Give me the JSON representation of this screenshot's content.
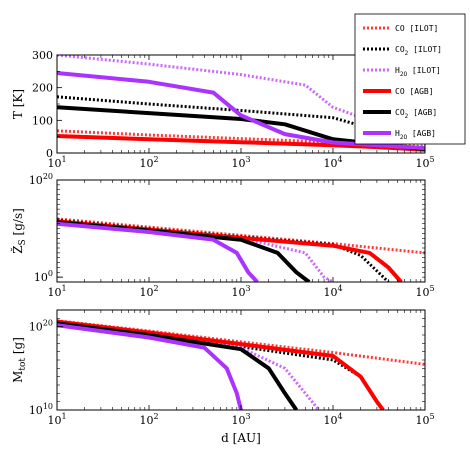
{
  "chart_data": [
    {
      "type": "line",
      "ylabel": "T [K]",
      "xlabel": "",
      "xscale": "log",
      "xlim": [
        10,
        100000
      ],
      "yscale": "linear",
      "ylim": [
        0,
        300
      ],
      "yticks": [
        0,
        100,
        200,
        300
      ],
      "ytick_labels": [
        "0",
        "100",
        "200",
        "300"
      ],
      "xtick_labels": [
        "10^1",
        "10^2",
        "10^3",
        "10^4",
        "10^5"
      ],
      "series": [
        {
          "name": "CO [ILOT]",
          "color": "#ff3b3b",
          "style": "dotted",
          "x": [
            10,
            100,
            1000,
            10000,
            100000
          ],
          "y": [
            68,
            55,
            44,
            33,
            20
          ]
        },
        {
          "name": "CO_2 [ILOT]",
          "color": "#000000",
          "style": "dotted",
          "x": [
            10,
            100,
            1000,
            10000,
            100000
          ],
          "y": [
            172,
            150,
            130,
            108,
            28
          ]
        },
        {
          "name": "H_2O [ILOT]",
          "color": "#cc66ff",
          "style": "dotted",
          "x": [
            10,
            100,
            1000,
            5000,
            10000,
            100000
          ],
          "y": [
            300,
            272,
            240,
            208,
            140,
            38
          ]
        },
        {
          "name": "CO [AGB]",
          "color": "#ff0000",
          "style": "solid",
          "x": [
            10,
            100,
            1000,
            10000,
            30000,
            100000
          ],
          "y": [
            52,
            42,
            33,
            24,
            18,
            10
          ]
        },
        {
          "name": "CO_2 [AGB]",
          "color": "#000000",
          "style": "solid",
          "x": [
            10,
            100,
            1000,
            3000,
            10000,
            100000
          ],
          "y": [
            140,
            122,
            104,
            88,
            42,
            12
          ]
        },
        {
          "name": "H_2O [AGB]",
          "color": "#aa33ff",
          "style": "solid",
          "x": [
            10,
            100,
            500,
            1000,
            3000,
            10000,
            100000
          ],
          "y": [
            245,
            218,
            185,
            115,
            58,
            32,
            15
          ]
        }
      ]
    },
    {
      "type": "line",
      "ylabel": "Ž_S [g/s]",
      "xlabel": "",
      "xscale": "log",
      "xlim": [
        10,
        100000
      ],
      "yscale": "log",
      "ylim": [
        0.1,
        100000000000000000000
      ],
      "ytick_labels": [
        "10^0",
        "10^20"
      ],
      "xtick_labels": [
        "10^1",
        "10^2",
        "10^3",
        "10^4",
        "10^5"
      ],
      "series": [
        {
          "name": "CO [ILOT]",
          "x": [
            10,
            100,
            1000,
            10000,
            100000
          ],
          "y": [
            1000000000000.0,
            20000000000.0,
            400000000.0,
            8000000.0,
            100000.0
          ]
        },
        {
          "name": "CO_2 [ILOT]",
          "x": [
            10,
            100,
            1000,
            10000,
            20000,
            40000
          ],
          "y": [
            500000000000.0,
            10000000000.0,
            200000000.0,
            5000000.0,
            30000.0,
            0.1
          ]
        },
        {
          "name": "H_2O [ILOT]",
          "x": [
            10,
            100,
            1000,
            5000,
            8000,
            10000
          ],
          "y": [
            300000000000.0,
            6000000000.0,
            120000000.0,
            100000.0,
            1,
            0.1
          ]
        },
        {
          "name": "CO [AGB]",
          "x": [
            10,
            100,
            1000,
            10000,
            25000,
            40000,
            55000
          ],
          "y": [
            300000000000.0,
            6000000000.0,
            120000000.0,
            3000000.0,
            100000.0,
            100.0,
            0.1
          ]
        },
        {
          "name": "CO_2 [AGB]",
          "x": [
            10,
            100,
            1000,
            2500,
            4000,
            5500
          ],
          "y": [
            200000000000.0,
            4000000000.0,
            50000000.0,
            100000.0,
            10,
            0.1
          ]
        },
        {
          "name": "H_2O [AGB]",
          "x": [
            10,
            100,
            500,
            900,
            1200,
            1500
          ],
          "y": [
            100000000000.0,
            2000000000.0,
            50000000.0,
            100000.0,
            10,
            0.1
          ]
        }
      ]
    },
    {
      "type": "line",
      "ylabel": "M_tot [g]",
      "xlabel": "d [AU]",
      "xscale": "log",
      "xlim": [
        10,
        100000
      ],
      "yscale": "log",
      "ylim": [
        10000000000,
        10000000000000000000000
      ],
      "ytick_labels": [
        "10^10",
        "10^20"
      ],
      "xtick_labels": [
        "10^1",
        "10^2",
        "10^3",
        "10^4",
        "10^5"
      ],
      "series": [
        {
          "name": "CO [ILOT]",
          "x": [
            10,
            100,
            1000,
            10000,
            100000
          ],
          "y": [
            5e+20,
            3e+19,
            1.5e+18,
            8e+16,
            3000000000000000.0
          ]
        },
        {
          "name": "CO_2 [ILOT]",
          "x": [
            10,
            100,
            1000,
            10000,
            20000,
            30000,
            35000
          ],
          "y": [
            2e+20,
            1e+19,
            4e+17,
            1e+16,
            100000000000000.0,
            100000000000.0,
            10000000000.0
          ]
        },
        {
          "name": "H_2O [ILOT]",
          "x": [
            10,
            100,
            1000,
            3000,
            5000,
            7000
          ],
          "y": [
            1.5e+20,
            8e+18,
            3e+17,
            1000000000000000.0,
            1000000000000.0,
            10000000000.0
          ]
        },
        {
          "name": "CO [AGB]",
          "x": [
            10,
            100,
            1000,
            10000,
            20000,
            30000,
            35000
          ],
          "y": [
            4e+20,
            2e+19,
            8e+17,
            3e+16,
            100000000000000.0,
            100000000000.0,
            10000000000.0
          ]
        },
        {
          "name": "CO_2 [AGB]",
          "x": [
            10,
            100,
            1000,
            2000,
            3000,
            4000
          ],
          "y": [
            2.5e+20,
            1e+19,
            2e+17,
            1000000000000000.0,
            1000000000000.0,
            10000000000.0
          ]
        },
        {
          "name": "H_2O [AGB]",
          "x": [
            10,
            100,
            400,
            700,
            900,
            1000
          ],
          "y": [
            1.5e+20,
            5e+18,
            3e+17,
            1000000000000000.0,
            1000000000000.0,
            10000000000.0
          ]
        }
      ]
    }
  ],
  "legend": {
    "placement": "top-right",
    "entries": [
      {
        "label": "CO [ILOT]",
        "color": "#ff3b3b",
        "style": "dotted"
      },
      {
        "label": "CO_2 [ILOT]",
        "color": "#000000",
        "style": "dotted"
      },
      {
        "label": "H_2O [ILOT]",
        "color": "#cc66ff",
        "style": "dotted"
      },
      {
        "label": "CO [AGB]",
        "color": "#ff0000",
        "style": "solid"
      },
      {
        "label": "CO_2 [AGB]",
        "color": "#000000",
        "style": "solid"
      },
      {
        "label": "H_2O [AGB]",
        "color": "#aa33ff",
        "style": "solid"
      }
    ]
  }
}
